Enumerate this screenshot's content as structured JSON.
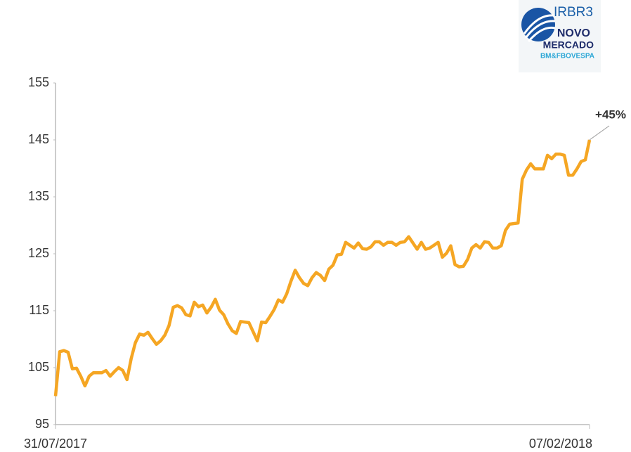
{
  "chart_data": {
    "type": "line",
    "annotation": "+45%",
    "categories": [
      "31/07/2017",
      null,
      null,
      null,
      null,
      null,
      null,
      null,
      null,
      null,
      null,
      null,
      null,
      null,
      null,
      null,
      null,
      null,
      null,
      null,
      null,
      null,
      null,
      null,
      null,
      null,
      null,
      null,
      null,
      null,
      null,
      null,
      null,
      null,
      null,
      null,
      null,
      null,
      null,
      null,
      null,
      null,
      null,
      null,
      null,
      null,
      null,
      null,
      null,
      null,
      null,
      null,
      null,
      null,
      null,
      null,
      null,
      null,
      null,
      null,
      null,
      null,
      null,
      null,
      null,
      null,
      null,
      null,
      null,
      null,
      null,
      null,
      null,
      null,
      null,
      null,
      null,
      null,
      null,
      null,
      null,
      null,
      null,
      null,
      null,
      null,
      null,
      null,
      null,
      null,
      null,
      null,
      null,
      null,
      null,
      null,
      null,
      null,
      null,
      null,
      null,
      null,
      null,
      null,
      null,
      null,
      null,
      null,
      null,
      null,
      null,
      null,
      null,
      null,
      null,
      null,
      null,
      null,
      null,
      null,
      null,
      null,
      null,
      null,
      null,
      null,
      null,
      "07/02/2018"
    ],
    "values": [
      100,
      107.8,
      108,
      107.7,
      104.8,
      104.9,
      103.5,
      101.8,
      103.5,
      104.1,
      104.1,
      104.1,
      104.5,
      103.5,
      104.3,
      105,
      104.5,
      102.9,
      106.6,
      109.4,
      110.9,
      110.7,
      111.2,
      110.1,
      109.1,
      109.7,
      110.7,
      112.4,
      115.6,
      115.9,
      115.5,
      114.3,
      114.1,
      116.5,
      115.7,
      116,
      114.6,
      115.6,
      117,
      115.1,
      114.3,
      112.7,
      111.5,
      111,
      113.1,
      113,
      112.9,
      111.3,
      109.7,
      113,
      112.9,
      114,
      115.2,
      116.9,
      116.5,
      118,
      120.2,
      122.1,
      120.8,
      119.8,
      119.4,
      120.8,
      121.7,
      121.2,
      120.3,
      122.3,
      123,
      124.8,
      124.9,
      127,
      126.5,
      126,
      126.9,
      125.9,
      125.8,
      126.2,
      127.1,
      127.1,
      126.5,
      127,
      127,
      126.5,
      127,
      127.1,
      128,
      126.9,
      125.8,
      127,
      125.8,
      126,
      126.5,
      127,
      124.4,
      125.1,
      126.4,
      123.1,
      122.7,
      122.8,
      124,
      126,
      126.6,
      126,
      127.1,
      127,
      126,
      126,
      126.4,
      129.1,
      130.2,
      130.3,
      130.4,
      138.1,
      139.7,
      140.8,
      139.9,
      139.9,
      139.9,
      142.3,
      141.7,
      142.5,
      142.5,
      142.3,
      138.8,
      138.8,
      139.9,
      141.2,
      141.5,
      145
    ],
    "color": "#f5a623",
    "ylim": [
      95,
      155
    ],
    "yticks": [
      95,
      105,
      115,
      125,
      135,
      145,
      155
    ],
    "grid": false
  },
  "logo": {
    "ticker": "IRBR3",
    "line1": "NOVO",
    "line2": "MERCADO",
    "line3": "BM&FBOVESPA"
  }
}
